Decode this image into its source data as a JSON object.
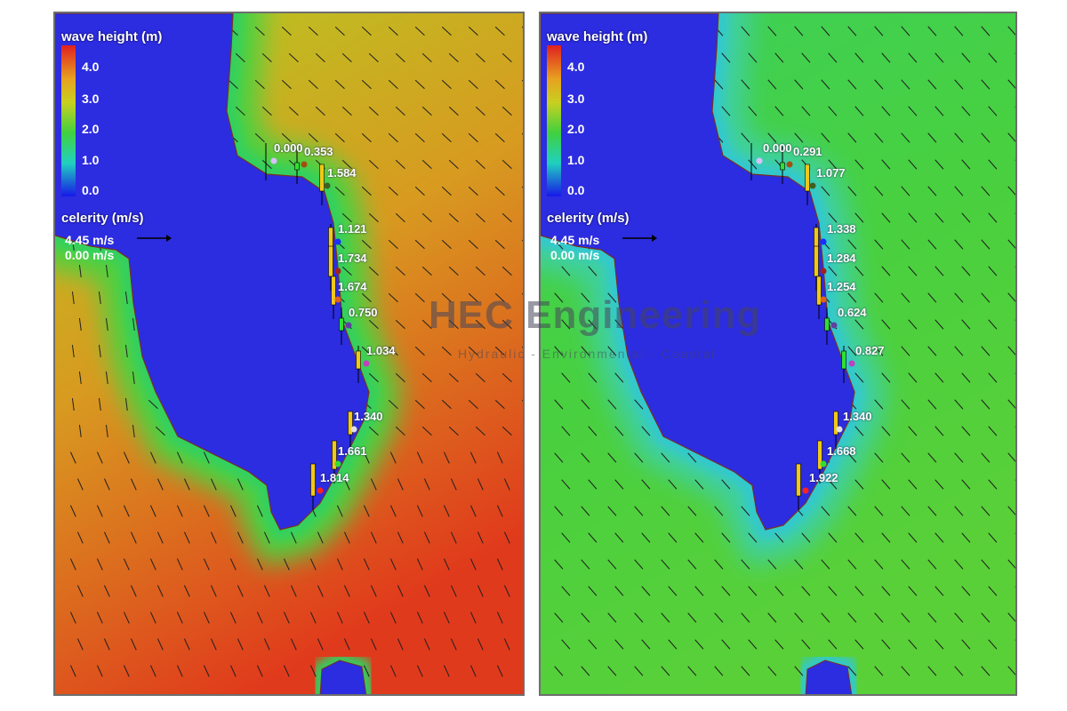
{
  "panels": [
    {
      "legend": {
        "title": "wave height (m)",
        "ticks": [
          "4.0",
          "3.0",
          "2.0",
          "1.0",
          "0.0"
        ],
        "celerity_title": "celerity (m/s)",
        "celerity_max": "4.45 m/s",
        "celerity_min": "0.00 m/s"
      },
      "colors": {
        "top": "#b4cc22",
        "mid": "#d89a20",
        "bottom": "#e03a1c",
        "halo": "#30d060",
        "land": "#2c2ce0"
      },
      "stations": [
        "0.000",
        "0.353",
        "1.584",
        "1.121",
        "1.734",
        "1.674",
        "0.750",
        "1.034",
        "1.340",
        "1.661",
        "1.814"
      ]
    },
    {
      "legend": {
        "title": "wave height (m)",
        "ticks": [
          "4.0",
          "3.0",
          "2.0",
          "1.0",
          "0.0"
        ],
        "celerity_title": "celerity (m/s)",
        "celerity_max": "4.45 m/s",
        "celerity_min": "0.00 m/s"
      },
      "colors": {
        "top": "#3cd05a",
        "mid": "#48d040",
        "bottom": "#5ad038",
        "halo": "#30c8d0",
        "land": "#2c2ce0"
      },
      "stations": [
        "0.000",
        "0.291",
        "1.077",
        "1.338",
        "1.284",
        "1.254",
        "0.624",
        "0.827",
        "1.340",
        "1.668",
        "1.922"
      ]
    }
  ],
  "watermark": {
    "title": "HEC Engineering",
    "subtitle": "Hydraulic - Environmental - Coastal"
  }
}
